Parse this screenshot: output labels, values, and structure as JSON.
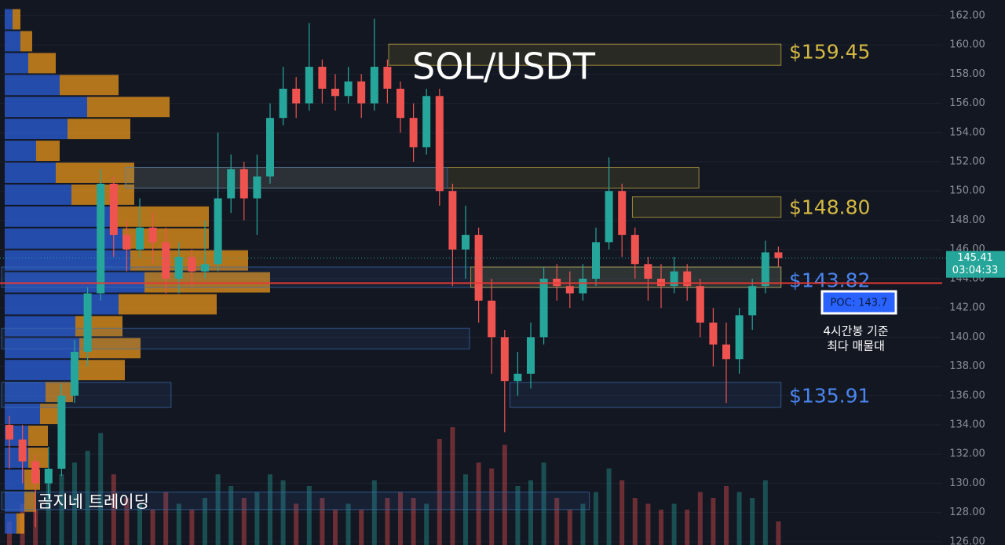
{
  "chart_data": {
    "type": "candlestick",
    "title": "SOL/USDT",
    "watermark": "곰지네 트레이딩",
    "ylim": [
      125.78,
      163.07
    ],
    "yticks": [
      {
        "value": 126,
        "label": "126.00"
      },
      {
        "value": 128,
        "label": "128.00"
      },
      {
        "value": 130,
        "label": "130.00"
      },
      {
        "value": 132,
        "label": "132.00"
      },
      {
        "value": 134,
        "label": "134.00"
      },
      {
        "value": 136,
        "label": "136.00"
      },
      {
        "value": 138,
        "label": "138.00"
      },
      {
        "value": 140,
        "label": "140.00"
      },
      {
        "value": 142,
        "label": "142.00"
      },
      {
        "value": 144,
        "label": "144.00"
      },
      {
        "value": 146,
        "label": "146.00"
      },
      {
        "value": 148,
        "label": "148.00"
      },
      {
        "value": 150,
        "label": "150.00"
      },
      {
        "value": 152,
        "label": "152.00"
      },
      {
        "value": 154,
        "label": "154.00"
      },
      {
        "value": 156,
        "label": "156.00"
      },
      {
        "value": 158,
        "label": "158.00"
      },
      {
        "value": 160,
        "label": "160.00"
      },
      {
        "value": 162,
        "label": "162.00"
      }
    ],
    "grid": true,
    "up_color": "#26a69a",
    "down_color": "#ef5350",
    "open": [
      134,
      133,
      131.5,
      130,
      131,
      136,
      139,
      143,
      150.5,
      147,
      146,
      147.5,
      146.5,
      144,
      145.5,
      144.5,
      145,
      149.5,
      151.5,
      149.5,
      151,
      155,
      157,
      156,
      158.5,
      157,
      156.5,
      157.5,
      156,
      158.5,
      157,
      155,
      153,
      156.5,
      150,
      146,
      147,
      142.5,
      140,
      137,
      137.5,
      140,
      144,
      143.5,
      143,
      144,
      146.5,
      150,
      147,
      145,
      144,
      143.5,
      144.5,
      143.5,
      141,
      139.5,
      138.5,
      141.5,
      143.5,
      145.8
    ],
    "high": [
      134.6,
      134,
      132,
      132.5,
      136.8,
      139.8,
      143.4,
      151.5,
      151,
      148,
      149.5,
      148.5,
      147.5,
      146.5,
      146,
      148,
      154,
      152.5,
      152,
      152.5,
      156,
      158.5,
      157.8,
      161.5,
      159,
      158,
      158.5,
      158,
      161.8,
      159,
      157.5,
      156,
      157,
      157,
      150.5,
      149,
      147.5,
      144,
      140.5,
      139,
      141,
      144.8,
      145,
      144.5,
      145,
      147.5,
      152.3,
      150.5,
      147.5,
      145.5,
      145,
      145.5,
      145,
      144,
      142,
      141,
      142,
      144,
      146.6,
      146.2
    ],
    "low": [
      131,
      130,
      127,
      129,
      130.5,
      135.5,
      138,
      142.5,
      145.5,
      144.5,
      145.5,
      145,
      143,
      143,
      143.5,
      144,
      144.5,
      148.5,
      148,
      147,
      150.5,
      154.5,
      155,
      155.5,
      156,
      155.5,
      156,
      155,
      155.5,
      156,
      154,
      152,
      152.5,
      149,
      143.5,
      144,
      141,
      137.5,
      133.5,
      136,
      136.5,
      139.5,
      142.5,
      142,
      142.5,
      143.5,
      146,
      145.5,
      144,
      142.5,
      142,
      143,
      142.5,
      140,
      138,
      135.5,
      137.5,
      140.5,
      143,
      144.8
    ],
    "close": [
      133,
      131.5,
      130,
      131,
      136,
      139,
      143,
      150.5,
      147,
      146,
      147.5,
      146.5,
      144,
      145.5,
      144.5,
      145,
      149.5,
      151.5,
      149.5,
      151,
      155,
      157,
      156,
      158.5,
      157,
      156.5,
      157.5,
      156,
      158.5,
      157,
      155,
      153,
      156.5,
      150,
      146,
      147,
      142.5,
      140,
      137,
      137.5,
      140,
      144,
      143.5,
      143,
      144,
      146.5,
      150,
      147,
      145,
      144,
      143.5,
      144.5,
      143.5,
      141,
      139.5,
      138.5,
      141.5,
      143.5,
      145.8,
      145.41
    ],
    "volume": [
      20,
      35,
      30,
      55,
      60,
      70,
      80,
      95,
      60,
      40,
      35,
      30,
      45,
      35,
      30,
      40,
      60,
      50,
      40,
      45,
      60,
      55,
      35,
      50,
      40,
      30,
      35,
      30,
      55,
      40,
      45,
      40,
      35,
      90,
      100,
      60,
      70,
      65,
      85,
      50,
      55,
      70,
      40,
      30,
      35,
      45,
      65,
      55,
      40,
      35,
      30,
      35,
      30,
      45,
      40,
      50,
      45,
      40,
      55,
      20
    ],
    "countdown": "03:04:33",
    "profile_bins": [
      126.5,
      128,
      129.5,
      131,
      132.5,
      134,
      135.5,
      137,
      138.5,
      140,
      141.5,
      143,
      144.5,
      146,
      147.5,
      149,
      150.5,
      152,
      153.5,
      155,
      156.5,
      158,
      159.5,
      161,
      162.5
    ],
    "profile_buy": [
      15,
      25,
      25,
      30,
      30,
      45,
      52,
      90,
      95,
      90,
      145,
      178,
      160,
      150,
      135,
      85,
      65,
      40,
      80,
      105,
      70,
      30,
      20,
      10
    ],
    "profile_sell": [
      10,
      15,
      20,
      25,
      25,
      30,
      35,
      63,
      78,
      60,
      125,
      160,
      150,
      110,
      125,
      80,
      100,
      30,
      80,
      105,
      75,
      35,
      15,
      10
    ],
    "profile_buy_color": "#2b5fd9",
    "profile_sell_color": "#e8961a",
    "zones": [
      {
        "low": 158.6,
        "high": 160.05,
        "from": 29.7,
        "to": 59.2,
        "color": "#d4b942",
        "level": 159.45,
        "label": "$159.45"
      },
      {
        "low": 150.2,
        "high": 151.6,
        "from": 9.5,
        "to": 52.9,
        "color": "#d4b942"
      },
      {
        "low": 150.2,
        "high": 151.6,
        "from": 9.5,
        "to": 33.6,
        "color": "#3b6db3"
      },
      {
        "low": 148.2,
        "high": 149.6,
        "from": 48.4,
        "to": 59.2,
        "color": "#d4b942",
        "level": 148.8,
        "label": "$148.80"
      },
      {
        "low": 143.4,
        "high": 144.8,
        "from": 0,
        "to": 59.2,
        "color": "#3b6db3"
      },
      {
        "low": 143.4,
        "high": 144.8,
        "from": 36,
        "to": 59.2,
        "color": "#d4b942",
        "level": 143.82,
        "label": "$143.82",
        "label_color": "#4a86f0"
      },
      {
        "low": 139.2,
        "high": 140.6,
        "from": 0,
        "to": 35.3,
        "color": "#3b6db3"
      },
      {
        "low": 135.2,
        "high": 136.9,
        "from": 0,
        "to": 12.4,
        "color": "#3b6db3"
      },
      {
        "low": 135.2,
        "high": 136.9,
        "from": 39,
        "to": 59.2,
        "color": "#3b6db3",
        "level": 135.91,
        "label": "$135.91",
        "label_color": "#4a86f0"
      },
      {
        "low": 128.2,
        "high": 129.4,
        "from": 0,
        "to": 44.5,
        "color": "#3b6db3"
      }
    ],
    "poc": {
      "value": 143.7,
      "label": "POC: 143.7",
      "color": "#e53935"
    },
    "annotation": [
      "4시간봉 기준",
      "최다 매물대"
    ]
  }
}
